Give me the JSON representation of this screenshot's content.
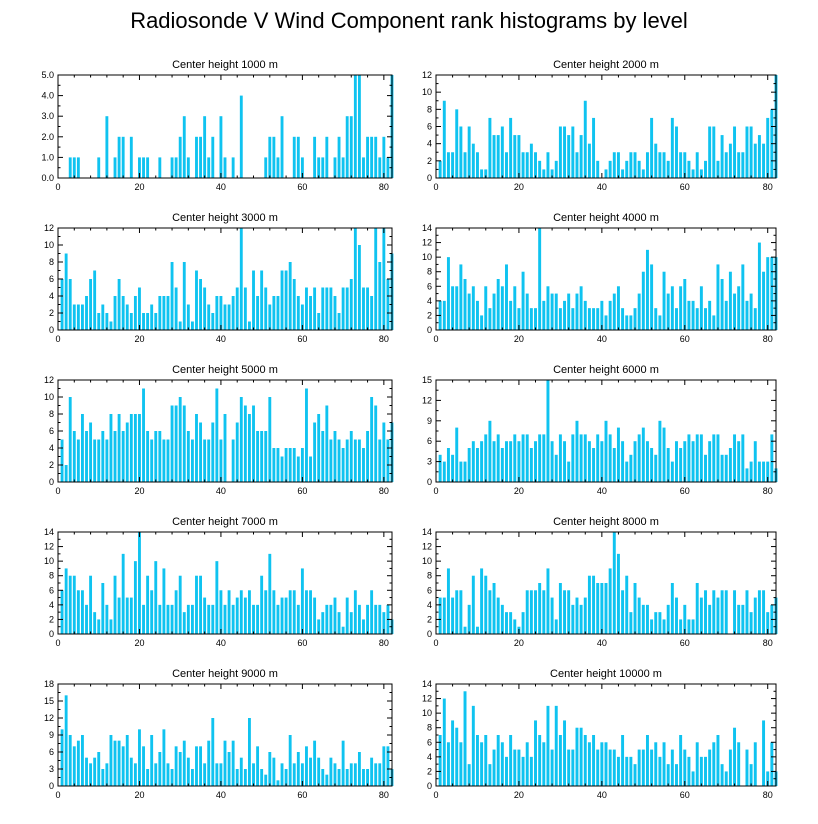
{
  "title": "Radiosonde V Wind Component rank histograms by level",
  "bar_color": "#0FC3F0",
  "chart_data": [
    {
      "type": "bar",
      "title": "Center height 1000 m",
      "ylim": [
        0,
        5
      ],
      "yticks": [
        0,
        1,
        2,
        3,
        4,
        5
      ],
      "ytick_labels": [
        "0.0",
        "1.0",
        "2.0",
        "3.0",
        "4.0",
        "5.0"
      ],
      "xlim": [
        0,
        82
      ],
      "xticks": [
        0,
        20,
        40,
        60,
        80
      ],
      "xtick_labels": [
        "0",
        "20",
        "40",
        "60",
        "80"
      ],
      "values": [
        0,
        0,
        1,
        1,
        1,
        0,
        0,
        0,
        0,
        1,
        0,
        3,
        0,
        1,
        2,
        2,
        0,
        2,
        0,
        1,
        1,
        1,
        0,
        0,
        1,
        0,
        0,
        1,
        1,
        2,
        3,
        1,
        0,
        2,
        2,
        3,
        1,
        2,
        0,
        3,
        1,
        0,
        1,
        0,
        4,
        0,
        0,
        0,
        0,
        0,
        1,
        2,
        2,
        1,
        3,
        0,
        0,
        2,
        2,
        1,
        0,
        0,
        2,
        1,
        1,
        2,
        0,
        1,
        2,
        1,
        3,
        3,
        5,
        5,
        1,
        2,
        2,
        2,
        1,
        2,
        1,
        5
      ]
    },
    {
      "type": "bar",
      "title": "Center height 2000 m",
      "ylim": [
        0,
        12
      ],
      "yticks": [
        0,
        2,
        4,
        6,
        8,
        10,
        12
      ],
      "ytick_labels": [
        "0",
        "2",
        "4",
        "6",
        "8",
        "10",
        "12"
      ],
      "xlim": [
        0,
        82
      ],
      "xticks": [
        0,
        20,
        40,
        60,
        80
      ],
      "xtick_labels": [
        "0",
        "20",
        "40",
        "60",
        "80"
      ],
      "values": [
        2,
        9,
        3,
        3,
        8,
        6,
        3,
        6,
        4,
        3,
        1,
        1,
        7,
        5,
        5,
        6,
        3,
        7,
        5,
        5,
        3,
        3,
        4,
        3,
        2,
        1,
        3,
        1,
        2,
        6,
        6,
        5,
        6,
        3,
        5,
        9,
        4,
        7,
        2,
        0,
        1,
        2,
        3,
        3,
        1,
        2,
        3,
        3,
        2,
        1,
        3,
        7,
        4,
        3,
        3,
        2,
        7,
        6,
        3,
        3,
        2,
        1,
        3,
        1,
        2,
        6,
        6,
        2,
        5,
        3,
        4,
        6,
        3,
        3,
        6,
        6,
        4,
        5,
        4,
        7,
        8,
        12
      ]
    },
    {
      "type": "bar",
      "title": "Center height 3000 m",
      "ylim": [
        0,
        12
      ],
      "yticks": [
        0,
        2,
        4,
        6,
        8,
        10,
        12
      ],
      "ytick_labels": [
        "0",
        "2",
        "4",
        "6",
        "8",
        "10",
        "12"
      ],
      "xlim": [
        0,
        82
      ],
      "xticks": [
        0,
        20,
        40,
        60,
        80
      ],
      "xtick_labels": [
        "0",
        "20",
        "40",
        "60",
        "80"
      ],
      "values": [
        6,
        9,
        6,
        3,
        3,
        3,
        4,
        6,
        7,
        2,
        3,
        2,
        1,
        4,
        6,
        4,
        3,
        2,
        4,
        5,
        2,
        2,
        3,
        2,
        4,
        4,
        4,
        8,
        5,
        1,
        8,
        3,
        1,
        7,
        6,
        5,
        3,
        2,
        4,
        4,
        3,
        3,
        4,
        5,
        12,
        5,
        1,
        7,
        4,
        7,
        5,
        3,
        4,
        4,
        7,
        7,
        8,
        6,
        4,
        3,
        5,
        4,
        5,
        2,
        5,
        5,
        5,
        4,
        2,
        5,
        5,
        6,
        12,
        10,
        5,
        5,
        4,
        12,
        8,
        12,
        6,
        9
      ]
    },
    {
      "type": "bar",
      "title": "Center height 4000 m",
      "ylim": [
        0,
        14
      ],
      "yticks": [
        0,
        2,
        4,
        6,
        8,
        10,
        12,
        14
      ],
      "ytick_labels": [
        "0",
        "2",
        "4",
        "6",
        "8",
        "10",
        "12",
        "14"
      ],
      "xlim": [
        0,
        82
      ],
      "xticks": [
        0,
        20,
        40,
        60,
        80
      ],
      "xtick_labels": [
        "0",
        "20",
        "40",
        "60",
        "80"
      ],
      "values": [
        4,
        4,
        10,
        6,
        6,
        9,
        7,
        5,
        6,
        4,
        2,
        6,
        3,
        5,
        7,
        6,
        9,
        4,
        6,
        3,
        8,
        5,
        3,
        3,
        14,
        4,
        6,
        5,
        5,
        3,
        4,
        5,
        3,
        5,
        6,
        4,
        3,
        3,
        3,
        4,
        2,
        4,
        5,
        6,
        3,
        2,
        2,
        3,
        5,
        8,
        11,
        9,
        3,
        2,
        8,
        5,
        6,
        3,
        6,
        7,
        4,
        4,
        3,
        6,
        3,
        4,
        2,
        9,
        7,
        4,
        8,
        5,
        6,
        9,
        4,
        5,
        3,
        12,
        8,
        10,
        10,
        10
      ]
    },
    {
      "type": "bar",
      "title": "Center height 5000 m",
      "ylim": [
        0,
        12
      ],
      "yticks": [
        0,
        2,
        4,
        6,
        8,
        10,
        12
      ],
      "ytick_labels": [
        "0",
        "2",
        "4",
        "6",
        "8",
        "10",
        "12"
      ],
      "xlim": [
        0,
        82
      ],
      "xticks": [
        0,
        20,
        40,
        60,
        80
      ],
      "xtick_labels": [
        "0",
        "20",
        "40",
        "60",
        "80"
      ],
      "values": [
        5,
        2,
        10,
        6,
        5,
        8,
        6,
        7,
        5,
        5,
        6,
        5,
        8,
        6,
        8,
        6,
        7,
        8,
        8,
        8,
        11,
        6,
        5,
        6,
        6,
        5,
        5,
        9,
        9,
        10,
        9,
        6,
        5,
        8,
        7,
        5,
        5,
        7,
        11,
        5,
        8,
        0,
        5,
        7,
        10,
        9,
        8,
        9,
        6,
        6,
        6,
        10,
        4,
        4,
        3,
        4,
        4,
        4,
        3,
        4,
        11,
        3,
        7,
        8,
        6,
        9,
        5,
        6,
        5,
        4,
        5,
        6,
        5,
        5,
        4,
        6,
        10,
        9,
        5,
        7,
        5,
        7
      ]
    },
    {
      "type": "bar",
      "title": "Center height 6000 m",
      "ylim": [
        0,
        15
      ],
      "yticks": [
        0,
        3,
        6,
        9,
        12,
        15
      ],
      "ytick_labels": [
        "0",
        "3",
        "6",
        "9",
        "12",
        "15"
      ],
      "xlim": [
        0,
        82
      ],
      "xticks": [
        0,
        20,
        40,
        60,
        80
      ],
      "xtick_labels": [
        "0",
        "20",
        "40",
        "60",
        "80"
      ],
      "values": [
        4,
        3,
        5,
        4,
        8,
        3,
        3,
        5,
        6,
        5,
        6,
        7,
        9,
        6,
        7,
        5,
        6,
        6,
        7,
        6,
        7,
        7,
        5,
        6,
        7,
        7,
        15,
        6,
        4,
        7,
        6,
        3,
        7,
        9,
        7,
        7,
        6,
        5,
        7,
        6,
        9,
        7,
        5,
        8,
        6,
        3,
        4,
        6,
        7,
        8,
        6,
        5,
        4,
        9,
        8,
        5,
        3,
        6,
        5,
        6,
        7,
        6,
        7,
        7,
        4,
        6,
        7,
        7,
        4,
        4,
        5,
        7,
        6,
        7,
        2,
        3,
        6,
        3,
        3,
        3,
        7,
        2
      ]
    },
    {
      "type": "bar",
      "title": "Center height 7000 m",
      "ylim": [
        0,
        14
      ],
      "yticks": [
        0,
        2,
        4,
        6,
        8,
        10,
        12,
        14
      ],
      "ytick_labels": [
        "0",
        "2",
        "4",
        "6",
        "8",
        "10",
        "12",
        "14"
      ],
      "xlim": [
        0,
        82
      ],
      "xticks": [
        0,
        20,
        40,
        60,
        80
      ],
      "xtick_labels": [
        "0",
        "20",
        "40",
        "60",
        "80"
      ],
      "values": [
        6,
        9,
        8,
        8,
        6,
        6,
        4,
        8,
        3,
        2,
        7,
        4,
        2,
        8,
        5,
        11,
        5,
        5,
        10,
        14,
        4,
        8,
        6,
        10,
        4,
        9,
        4,
        4,
        6,
        8,
        3,
        4,
        4,
        8,
        8,
        5,
        4,
        4,
        10,
        6,
        4,
        6,
        4,
        5,
        6,
        5,
        6,
        4,
        4,
        8,
        6,
        11,
        6,
        4,
        5,
        5,
        6,
        6,
        4,
        9,
        6,
        6,
        5,
        2,
        3,
        4,
        4,
        5,
        3,
        1,
        5,
        3,
        6,
        4,
        2,
        4,
        6,
        4,
        4,
        3,
        4,
        2
      ]
    },
    {
      "type": "bar",
      "title": "Center height 8000 m",
      "ylim": [
        0,
        14
      ],
      "yticks": [
        0,
        2,
        4,
        6,
        8,
        10,
        12,
        14
      ],
      "ytick_labels": [
        "0",
        "2",
        "4",
        "6",
        "8",
        "10",
        "12",
        "14"
      ],
      "xlim": [
        0,
        82
      ],
      "xticks": [
        0,
        20,
        40,
        60,
        80
      ],
      "xtick_labels": [
        "0",
        "20",
        "40",
        "60",
        "80"
      ],
      "values": [
        5,
        5,
        9,
        5,
        6,
        6,
        1,
        4,
        8,
        1,
        9,
        8,
        6,
        7,
        5,
        4,
        3,
        3,
        2,
        1,
        3,
        6,
        6,
        6,
        7,
        6,
        9,
        5,
        2,
        7,
        6,
        6,
        4,
        5,
        4,
        5,
        8,
        8,
        7,
        7,
        7,
        9,
        14,
        11,
        6,
        8,
        3,
        7,
        5,
        4,
        4,
        2,
        3,
        3,
        2,
        4,
        7,
        5,
        2,
        4,
        2,
        2,
        7,
        5,
        6,
        4,
        6,
        5,
        6,
        6,
        0,
        6,
        4,
        4,
        6,
        3,
        5,
        6,
        6,
        3,
        4,
        5
      ]
    },
    {
      "type": "bar",
      "title": "Center height 9000 m",
      "ylim": [
        0,
        18
      ],
      "yticks": [
        0,
        3,
        6,
        9,
        12,
        15,
        18
      ],
      "ytick_labels": [
        "0",
        "3",
        "6",
        "9",
        "12",
        "15",
        "18"
      ],
      "xlim": [
        0,
        82
      ],
      "xticks": [
        0,
        20,
        40,
        60,
        80
      ],
      "xtick_labels": [
        "0",
        "20",
        "40",
        "60",
        "80"
      ],
      "values": [
        10,
        16,
        9,
        7,
        8,
        9,
        5,
        4,
        5,
        6,
        3,
        4,
        9,
        8,
        8,
        7,
        9,
        5,
        4,
        10,
        7,
        3,
        9,
        4,
        6,
        10,
        4,
        3,
        7,
        6,
        8,
        5,
        3,
        7,
        7,
        4,
        8,
        12,
        4,
        4,
        8,
        6,
        8,
        3,
        5,
        3,
        12,
        4,
        7,
        3,
        2,
        6,
        5,
        1,
        4,
        3,
        9,
        4,
        6,
        4,
        7,
        5,
        8,
        5,
        3,
        2,
        5,
        4,
        3,
        8,
        3,
        4,
        4,
        6,
        3,
        3,
        5,
        4,
        4,
        7,
        7,
        3
      ]
    },
    {
      "type": "bar",
      "title": "Center height 10000 m",
      "ylim": [
        0,
        14
      ],
      "yticks": [
        0,
        2,
        4,
        6,
        8,
        10,
        12,
        14
      ],
      "ytick_labels": [
        "0",
        "2",
        "4",
        "6",
        "8",
        "10",
        "12",
        "14"
      ],
      "xlim": [
        0,
        82
      ],
      "xticks": [
        0,
        20,
        40,
        60,
        80
      ],
      "xtick_labels": [
        "0",
        "20",
        "40",
        "60",
        "80"
      ],
      "values": [
        7,
        12,
        6,
        9,
        8,
        6,
        13,
        3,
        11,
        7,
        6,
        7,
        3,
        5,
        7,
        6,
        4,
        7,
        5,
        5,
        4,
        6,
        4,
        9,
        7,
        6,
        11,
        5,
        11,
        7,
        9,
        5,
        5,
        8,
        8,
        7,
        6,
        7,
        5,
        6,
        6,
        5,
        5,
        4,
        7,
        4,
        4,
        3,
        5,
        5,
        7,
        5,
        6,
        4,
        6,
        3,
        5,
        3,
        7,
        5,
        4,
        2,
        6,
        4,
        4,
        5,
        6,
        7,
        3,
        2,
        5,
        8,
        6,
        0,
        5,
        3,
        6,
        0,
        9,
        2,
        6,
        2
      ]
    }
  ]
}
